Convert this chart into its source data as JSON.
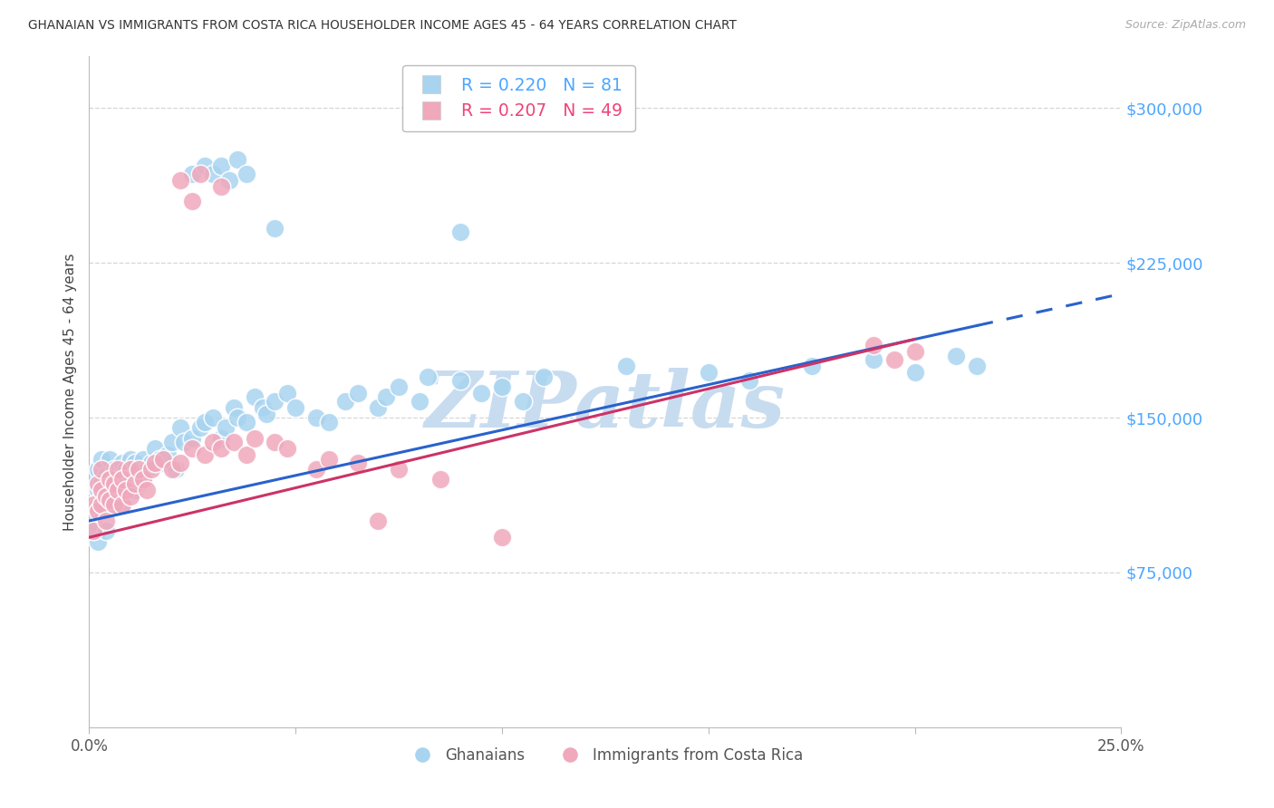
{
  "title": "GHANAIAN VS IMMIGRANTS FROM COSTA RICA HOUSEHOLDER INCOME AGES 45 - 64 YEARS CORRELATION CHART",
  "source": "Source: ZipAtlas.com",
  "ylabel": "Householder Income Ages 45 - 64 years",
  "yticks": [
    0,
    75000,
    150000,
    225000,
    300000
  ],
  "xlim": [
    0.0,
    0.25
  ],
  "ylim": [
    0,
    325000
  ],
  "blue_color": "#a8d4f0",
  "pink_color": "#f0a8bc",
  "blue_line_color": "#2962cc",
  "pink_line_color": "#cc3366",
  "background_color": "#ffffff",
  "grid_color": "#cccccc",
  "tick_label_color": "#4da6ff",
  "watermark_text": "ZIPatlas",
  "watermark_color": "#c8dcf0",
  "R_blue": 0.22,
  "N_blue": 81,
  "R_pink": 0.207,
  "N_pink": 49,
  "blue_x": [
    0.001,
    0.001,
    0.001,
    0.002,
    0.002,
    0.002,
    0.002,
    0.003,
    0.003,
    0.003,
    0.003,
    0.004,
    0.004,
    0.004,
    0.005,
    0.005,
    0.005,
    0.006,
    0.006,
    0.007,
    0.007,
    0.007,
    0.008,
    0.008,
    0.009,
    0.009,
    0.01,
    0.01,
    0.011,
    0.011,
    0.012,
    0.012,
    0.013,
    0.013,
    0.014,
    0.015,
    0.016,
    0.017,
    0.018,
    0.019,
    0.02,
    0.021,
    0.022,
    0.023,
    0.025,
    0.027,
    0.028,
    0.03,
    0.032,
    0.033,
    0.035,
    0.036,
    0.038,
    0.04,
    0.042,
    0.043,
    0.045,
    0.048,
    0.05,
    0.055,
    0.058,
    0.062,
    0.065,
    0.07,
    0.072,
    0.075,
    0.08,
    0.082,
    0.09,
    0.095,
    0.1,
    0.105,
    0.11,
    0.13,
    0.15,
    0.16,
    0.175,
    0.19,
    0.2,
    0.21,
    0.215
  ],
  "blue_y": [
    100000,
    120000,
    95000,
    115000,
    108000,
    125000,
    90000,
    112000,
    118000,
    105000,
    130000,
    122000,
    95000,
    110000,
    115000,
    108000,
    130000,
    125000,
    115000,
    120000,
    118000,
    112000,
    128000,
    108000,
    125000,
    115000,
    130000,
    120000,
    128000,
    115000,
    125000,
    118000,
    130000,
    122000,
    125000,
    128000,
    135000,
    130000,
    128000,
    132000,
    138000,
    125000,
    145000,
    138000,
    140000,
    145000,
    148000,
    150000,
    140000,
    145000,
    155000,
    150000,
    148000,
    160000,
    155000,
    152000,
    158000,
    162000,
    155000,
    150000,
    148000,
    158000,
    162000,
    155000,
    160000,
    165000,
    158000,
    170000,
    168000,
    162000,
    165000,
    158000,
    170000,
    175000,
    172000,
    168000,
    175000,
    178000,
    172000,
    180000,
    175000
  ],
  "blue_outlier_x": [
    0.025,
    0.028,
    0.03,
    0.032,
    0.034,
    0.036,
    0.038,
    0.045,
    0.09
  ],
  "blue_outlier_y": [
    268000,
    272000,
    268000,
    272000,
    265000,
    275000,
    268000,
    242000,
    240000
  ],
  "pink_x": [
    0.001,
    0.001,
    0.002,
    0.002,
    0.003,
    0.003,
    0.003,
    0.004,
    0.004,
    0.005,
    0.005,
    0.006,
    0.006,
    0.007,
    0.007,
    0.008,
    0.008,
    0.009,
    0.01,
    0.01,
    0.011,
    0.012,
    0.013,
    0.014,
    0.015,
    0.016,
    0.018,
    0.02,
    0.022,
    0.025,
    0.028,
    0.03,
    0.032,
    0.035,
    0.038,
    0.04,
    0.045,
    0.048,
    0.055,
    0.058,
    0.065,
    0.075,
    0.085,
    0.19,
    0.195,
    0.2
  ],
  "pink_y": [
    108000,
    95000,
    118000,
    105000,
    115000,
    108000,
    125000,
    112000,
    100000,
    120000,
    110000,
    118000,
    108000,
    125000,
    115000,
    120000,
    108000,
    115000,
    125000,
    112000,
    118000,
    125000,
    120000,
    115000,
    125000,
    128000,
    130000,
    125000,
    128000,
    135000,
    132000,
    138000,
    135000,
    138000,
    132000,
    140000,
    138000,
    135000,
    125000,
    130000,
    128000,
    125000,
    120000,
    185000,
    178000,
    182000
  ],
  "pink_outlier_x": [
    0.022,
    0.025,
    0.027,
    0.032,
    0.07,
    0.1
  ],
  "pink_outlier_y": [
    265000,
    255000,
    268000,
    262000,
    100000,
    92000
  ],
  "trend_blue_x0": 0.0,
  "trend_blue_y0": 100000,
  "trend_blue_x1": 0.25,
  "trend_blue_y1": 210000,
  "trend_blue_dash_start": 0.215,
  "trend_pink_x0": 0.0,
  "trend_pink_y0": 92000,
  "trend_pink_x1": 0.2,
  "trend_pink_y1": 188000
}
